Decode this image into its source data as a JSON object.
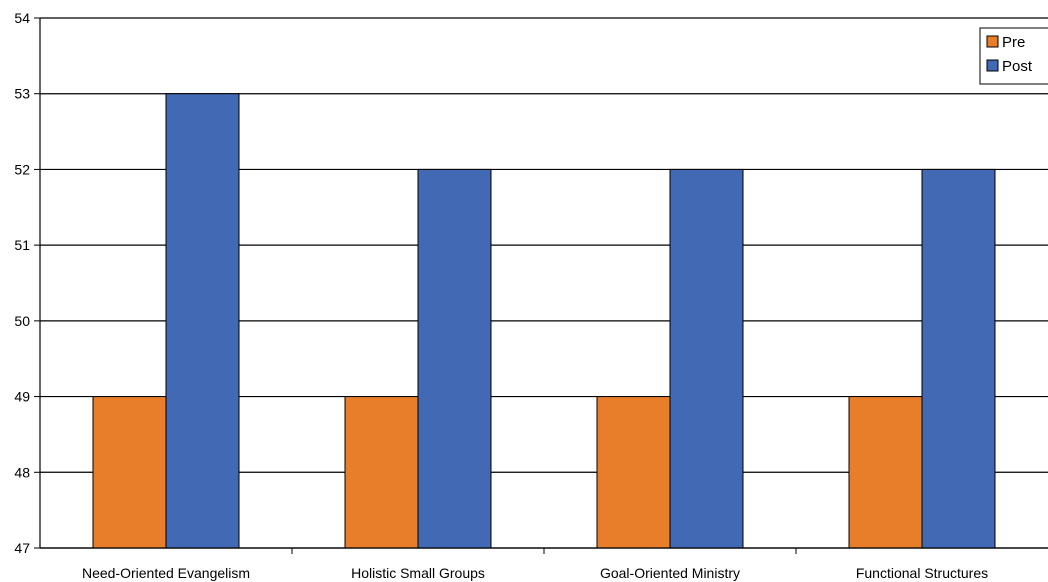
{
  "chart_data": {
    "type": "bar",
    "categories": [
      "Need-Oriented Evangelism",
      "Holistic Small Groups",
      "Goal-Oriented Ministry",
      "Functional Structures"
    ],
    "series": [
      {
        "name": "Pre",
        "values": [
          49,
          49,
          49,
          49
        ],
        "color": "#E87E2A"
      },
      {
        "name": "Post",
        "values": [
          53,
          52,
          52,
          52
        ],
        "color": "#4169B4"
      }
    ],
    "ylim": [
      47,
      54
    ],
    "yticks": [
      47,
      48,
      49,
      50,
      51,
      52,
      53,
      54
    ],
    "grid": true,
    "legend": "top-right",
    "title": "",
    "xlabel": "",
    "ylabel": ""
  }
}
